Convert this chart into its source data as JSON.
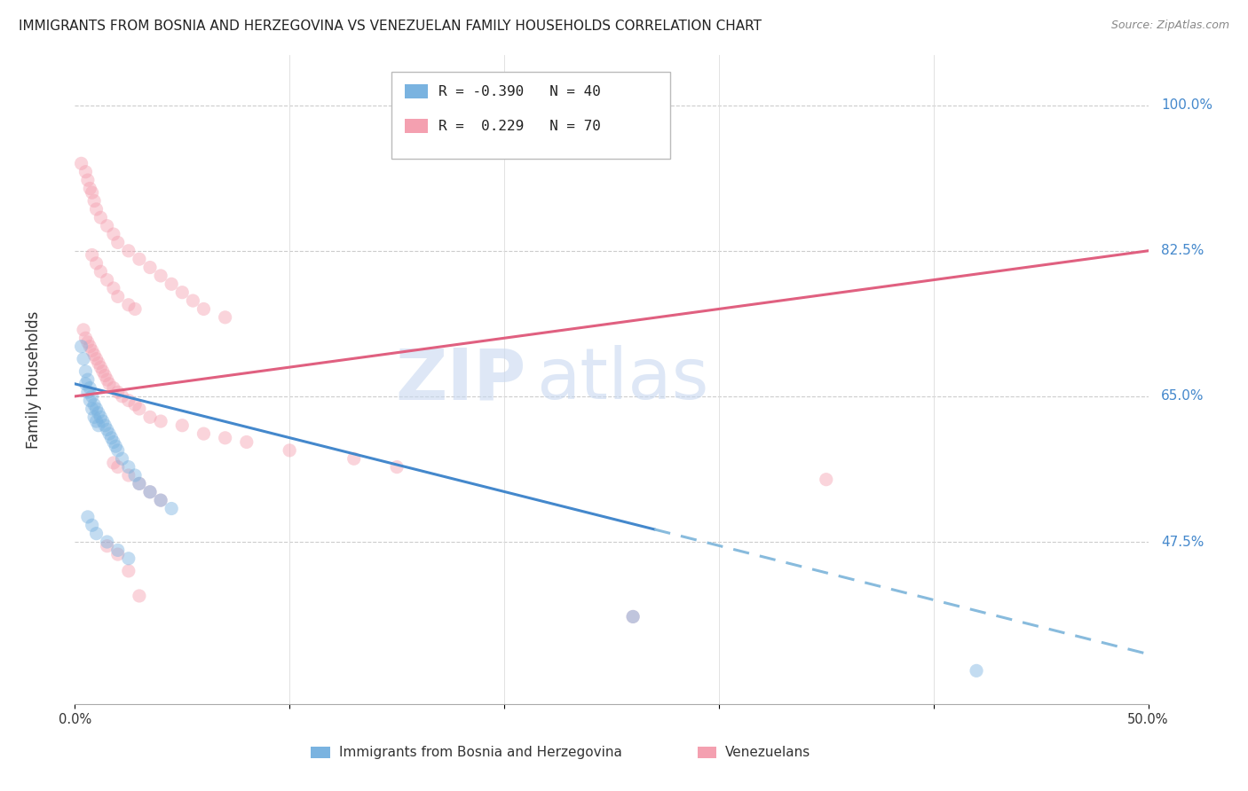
{
  "title": "IMMIGRANTS FROM BOSNIA AND HERZEGOVINA VS VENEZUELAN FAMILY HOUSEHOLDS CORRELATION CHART",
  "source": "Source: ZipAtlas.com",
  "ylabel": "Family Households",
  "ytick_labels": [
    "100.0%",
    "82.5%",
    "65.0%",
    "47.5%"
  ],
  "ytick_values": [
    1.0,
    0.825,
    0.65,
    0.475
  ],
  "xmin": 0.0,
  "xmax": 0.5,
  "ymin": 0.28,
  "ymax": 1.06,
  "bosnia_color": "#7ab3e0",
  "venezuela_color": "#f4a0b0",
  "bosnia_line_color": "#4488cc",
  "venezuela_line_color": "#e06080",
  "bosnia_line_solid": {
    "x0": 0.0,
    "y0": 0.665,
    "x1": 0.27,
    "y1": 0.49
  },
  "bosnia_line_dash": {
    "x0": 0.27,
    "y0": 0.49,
    "x1": 0.5,
    "y1": 0.34
  },
  "venezuela_line": {
    "x0": 0.0,
    "y0": 0.65,
    "x1": 0.5,
    "y1": 0.825
  },
  "bosnia_scatter": [
    [
      0.003,
      0.71
    ],
    [
      0.004,
      0.695
    ],
    [
      0.005,
      0.68
    ],
    [
      0.005,
      0.665
    ],
    [
      0.006,
      0.67
    ],
    [
      0.006,
      0.655
    ],
    [
      0.007,
      0.66
    ],
    [
      0.007,
      0.645
    ],
    [
      0.008,
      0.65
    ],
    [
      0.008,
      0.635
    ],
    [
      0.009,
      0.64
    ],
    [
      0.009,
      0.625
    ],
    [
      0.01,
      0.635
    ],
    [
      0.01,
      0.62
    ],
    [
      0.011,
      0.63
    ],
    [
      0.011,
      0.615
    ],
    [
      0.012,
      0.625
    ],
    [
      0.013,
      0.62
    ],
    [
      0.014,
      0.615
    ],
    [
      0.015,
      0.61
    ],
    [
      0.016,
      0.605
    ],
    [
      0.017,
      0.6
    ],
    [
      0.018,
      0.595
    ],
    [
      0.019,
      0.59
    ],
    [
      0.02,
      0.585
    ],
    [
      0.022,
      0.575
    ],
    [
      0.025,
      0.565
    ],
    [
      0.028,
      0.555
    ],
    [
      0.03,
      0.545
    ],
    [
      0.035,
      0.535
    ],
    [
      0.04,
      0.525
    ],
    [
      0.045,
      0.515
    ],
    [
      0.006,
      0.505
    ],
    [
      0.008,
      0.495
    ],
    [
      0.01,
      0.485
    ],
    [
      0.015,
      0.475
    ],
    [
      0.02,
      0.465
    ],
    [
      0.025,
      0.455
    ],
    [
      0.26,
      0.385
    ],
    [
      0.42,
      0.32
    ]
  ],
  "venezuela_scatter": [
    [
      0.003,
      0.93
    ],
    [
      0.005,
      0.92
    ],
    [
      0.006,
      0.91
    ],
    [
      0.007,
      0.9
    ],
    [
      0.008,
      0.895
    ],
    [
      0.009,
      0.885
    ],
    [
      0.01,
      0.875
    ],
    [
      0.012,
      0.865
    ],
    [
      0.015,
      0.855
    ],
    [
      0.018,
      0.845
    ],
    [
      0.02,
      0.835
    ],
    [
      0.025,
      0.825
    ],
    [
      0.03,
      0.815
    ],
    [
      0.035,
      0.805
    ],
    [
      0.04,
      0.795
    ],
    [
      0.045,
      0.785
    ],
    [
      0.05,
      0.775
    ],
    [
      0.055,
      0.765
    ],
    [
      0.06,
      0.755
    ],
    [
      0.07,
      0.745
    ],
    [
      0.004,
      0.73
    ],
    [
      0.005,
      0.72
    ],
    [
      0.006,
      0.715
    ],
    [
      0.007,
      0.71
    ],
    [
      0.008,
      0.705
    ],
    [
      0.009,
      0.7
    ],
    [
      0.01,
      0.695
    ],
    [
      0.011,
      0.69
    ],
    [
      0.012,
      0.685
    ],
    [
      0.013,
      0.68
    ],
    [
      0.014,
      0.675
    ],
    [
      0.015,
      0.67
    ],
    [
      0.016,
      0.665
    ],
    [
      0.018,
      0.66
    ],
    [
      0.02,
      0.655
    ],
    [
      0.022,
      0.65
    ],
    [
      0.025,
      0.645
    ],
    [
      0.028,
      0.64
    ],
    [
      0.03,
      0.635
    ],
    [
      0.035,
      0.625
    ],
    [
      0.04,
      0.62
    ],
    [
      0.05,
      0.615
    ],
    [
      0.06,
      0.605
    ],
    [
      0.07,
      0.6
    ],
    [
      0.08,
      0.595
    ],
    [
      0.1,
      0.585
    ],
    [
      0.13,
      0.575
    ],
    [
      0.15,
      0.565
    ],
    [
      0.008,
      0.82
    ],
    [
      0.01,
      0.81
    ],
    [
      0.012,
      0.8
    ],
    [
      0.015,
      0.79
    ],
    [
      0.018,
      0.78
    ],
    [
      0.02,
      0.77
    ],
    [
      0.025,
      0.76
    ],
    [
      0.028,
      0.755
    ],
    [
      0.018,
      0.57
    ],
    [
      0.02,
      0.565
    ],
    [
      0.025,
      0.555
    ],
    [
      0.03,
      0.545
    ],
    [
      0.035,
      0.535
    ],
    [
      0.04,
      0.525
    ],
    [
      0.015,
      0.47
    ],
    [
      0.02,
      0.46
    ],
    [
      0.025,
      0.44
    ],
    [
      0.03,
      0.41
    ],
    [
      0.35,
      0.55
    ],
    [
      0.26,
      0.385
    ]
  ],
  "background_color": "#ffffff",
  "grid_color": "#cccccc",
  "title_color": "#222222",
  "title_fontsize": 11,
  "source_color": "#888888",
  "source_fontsize": 9,
  "ytick_color": "#4488cc",
  "ylabel_color": "#333333",
  "scatter_size": 120,
  "scatter_alpha": 0.45,
  "line_width": 2.2
}
